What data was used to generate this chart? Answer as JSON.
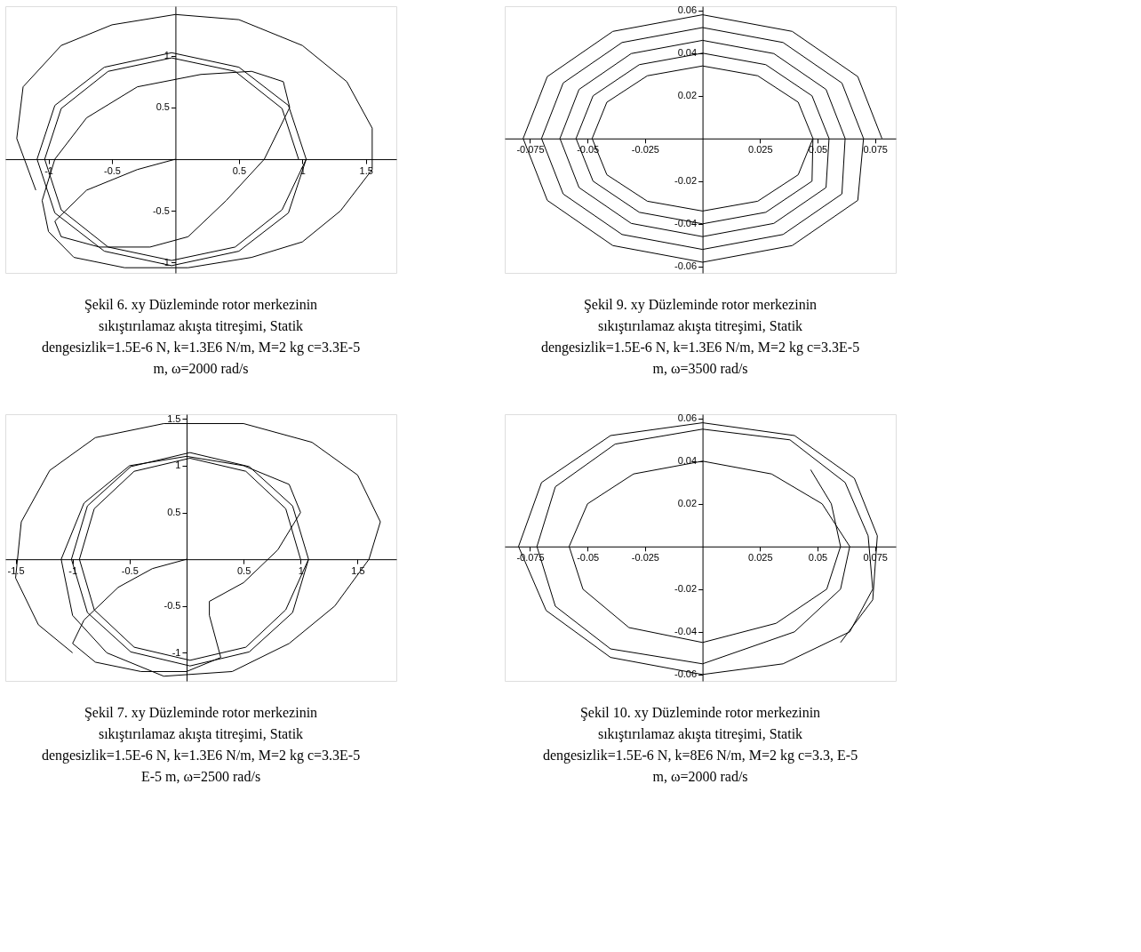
{
  "chart_data": [
    {
      "type": "line",
      "title": "Şekil 6. xy Düzleminde rotor merkezinin sıkıştırılamaz akışta titreşimi, Statik dengesizlik=1.5E-6 N, k=1.3E6 N/m, M=2 kg c=3.3E-5 m, ω=2000 rad/s",
      "xlim": [
        -1.34,
        1.74
      ],
      "ylim": [
        -1.1,
        1.48
      ],
      "xticks": [
        -1,
        -0.5,
        0.5,
        1,
        1.5
      ],
      "yticks": [
        -1,
        -0.5,
        0.5,
        1
      ],
      "series": [
        {
          "color": "#000000",
          "x": [
            0,
            -0.3,
            -0.7,
            -0.95,
            -0.9,
            -0.6,
            -0.2,
            0.1,
            0.4,
            0.7,
            0.9,
            0.85,
            0.6,
            0.2,
            -0.3,
            -0.7,
            -0.95,
            -1.05,
            -1.0,
            -0.8,
            -0.4,
            0.1,
            0.6,
            1.0,
            1.3,
            1.55,
            1.55,
            1.35,
            1.0,
            0.5,
            0.0,
            -0.5,
            -0.9,
            -1.2,
            -1.25,
            -1.1
          ],
          "values": [
            0,
            -0.1,
            -0.3,
            -0.6,
            -0.75,
            -0.85,
            -0.85,
            -0.75,
            -0.4,
            0.0,
            0.5,
            0.75,
            0.85,
            0.82,
            0.7,
            0.4,
            0.0,
            -0.4,
            -0.7,
            -0.95,
            -1.05,
            -1.05,
            -0.95,
            -0.8,
            -0.5,
            -0.1,
            0.3,
            0.75,
            1.1,
            1.35,
            1.4,
            1.3,
            1.1,
            0.7,
            0.2,
            -0.3
          ]
        },
        {
          "color": "#000000",
          "x": [
            0.97,
            0.84,
            0.47,
            -0.03,
            -0.53,
            -0.9,
            -1.03,
            -0.9,
            -0.53,
            -0.03,
            0.47,
            0.84,
            1.03,
            0.89,
            0.5,
            -0.03,
            -0.56,
            -0.95,
            -1.09,
            -0.95,
            -0.56,
            -0.03,
            0.5,
            0.89,
            1.03
          ],
          "values": [
            0,
            0.49,
            0.85,
            0.98,
            0.85,
            0.49,
            0,
            -0.49,
            -0.85,
            -0.98,
            -0.85,
            -0.49,
            0,
            0.52,
            0.89,
            1.03,
            0.89,
            0.52,
            0,
            -0.52,
            -0.89,
            -1.03,
            -0.89,
            -0.52,
            0
          ]
        }
      ]
    },
    {
      "type": "line",
      "title": "Şekil 9. xy Düzleminde rotor merkezinin sıkıştırılamaz akışta titreşimi, Statik dengesizlik=1.5E-6 N, k=1.3E6 N/m, M=2 kg c=3.3E-5 m, ω=3500 rad/s",
      "xlim": [
        -0.086,
        0.084
      ],
      "ylim": [
        -0.063,
        0.062
      ],
      "xticks": [
        -0.075,
        -0.05,
        -0.025,
        0.025,
        0.05,
        0.075
      ],
      "yticks": [
        -0.06,
        -0.04,
        -0.02,
        0.02,
        0.04,
        0.06
      ],
      "series": [
        {
          "color": "#000000",
          "x": [
            0.078,
            0.0675,
            0.039,
            0,
            -0.039,
            -0.0675,
            -0.078,
            -0.0675,
            -0.039,
            0,
            0.039,
            0.0675,
            0.07,
            0.0606,
            0.035,
            0,
            -0.035,
            -0.0606,
            -0.07,
            -0.0606,
            -0.035,
            0,
            0.035,
            0.0606,
            0.062,
            0.0537,
            0.031,
            0,
            -0.031,
            -0.0537,
            -0.062,
            -0.0537,
            -0.031,
            0,
            0.031,
            0.0537,
            0.055,
            0.0476,
            0.0275,
            0,
            -0.0275,
            -0.0476,
            -0.055,
            -0.0476,
            -0.0275,
            0,
            0.0275,
            0.0476,
            0.048,
            0.0416,
            0.024,
            0,
            -0.024,
            -0.0416,
            -0.048,
            -0.0416,
            -0.024,
            0,
            0.024,
            0.0416,
            0.048
          ],
          "values": [
            0,
            0.029,
            0.0502,
            0.058,
            0.0502,
            0.029,
            0,
            -0.029,
            -0.0502,
            -0.058,
            -0.0502,
            -0.029,
            0,
            0.026,
            0.045,
            0.052,
            0.045,
            0.026,
            0,
            -0.026,
            -0.045,
            -0.052,
            -0.045,
            -0.026,
            0,
            0.023,
            0.0398,
            0.046,
            0.0398,
            0.023,
            0,
            -0.023,
            -0.0398,
            -0.046,
            -0.0398,
            -0.023,
            0,
            0.02,
            0.0346,
            0.04,
            0.0346,
            0.02,
            0,
            -0.02,
            -0.0346,
            -0.04,
            -0.0346,
            -0.02,
            0,
            0.017,
            0.0294,
            0.034,
            0.0294,
            0.017,
            0,
            -0.017,
            -0.0294,
            -0.034,
            -0.0294,
            -0.017,
            0
          ]
        }
      ]
    },
    {
      "type": "line",
      "title": "Şekil 7. xy Düzleminde rotor merkezinin sıkıştırılamaz akışta titreşimi, Statik dengesizlik=1.5E-6 N, k=1.3E6 N/m, M=2 kg c=3.3E-5 E-5 m, ω=2500 rad/s",
      "xlim": [
        -1.59,
        1.84
      ],
      "ylim": [
        -1.3,
        1.55
      ],
      "xticks": [
        -1.5,
        -1,
        -0.5,
        0.5,
        1,
        1.5
      ],
      "yticks": [
        -1,
        -0.5,
        0.5,
        1,
        1.5
      ],
      "series": [
        {
          "color": "#000000",
          "x": [
            0,
            -0.3,
            -0.6,
            -0.9,
            -1.0,
            -0.8,
            -0.4,
            0,
            0.3,
            0.2,
            0.2,
            0.5,
            0.8,
            1.0,
            0.9,
            0.5,
            0,
            -0.5,
            -0.9,
            -1.1,
            -1.0,
            -0.7,
            -0.2,
            0.4,
            0.9,
            1.3,
            1.6,
            1.7,
            1.5,
            1.1,
            0.5,
            -0.2,
            -0.8,
            -1.2,
            -1.45,
            -1.5,
            -1.3,
            -1.0
          ],
          "values": [
            0,
            -0.1,
            -0.3,
            -0.65,
            -0.9,
            -1.1,
            -1.2,
            -1.2,
            -1.05,
            -0.6,
            -0.45,
            -0.25,
            0.1,
            0.5,
            0.8,
            1.0,
            1.1,
            1.0,
            0.6,
            0,
            -0.6,
            -1.0,
            -1.25,
            -1.2,
            -0.9,
            -0.5,
            0,
            0.4,
            0.9,
            1.25,
            1.45,
            1.45,
            1.3,
            0.95,
            0.4,
            -0.2,
            -0.7,
            -1.0
          ]
        },
        {
          "color": "#000000",
          "x": [
            1.0,
            0.87,
            0.52,
            0.03,
            -0.46,
            -0.81,
            -0.94,
            -0.81,
            -0.46,
            0.03,
            0.52,
            0.87,
            1.07,
            0.93,
            0.55,
            0.03,
            -0.49,
            -0.87,
            -1.01,
            -0.87,
            -0.49,
            0.03,
            0.55,
            0.93,
            1.07
          ],
          "values": [
            0,
            0.54,
            0.94,
            1.08,
            0.94,
            0.54,
            0,
            -0.54,
            -0.94,
            -1.08,
            -0.94,
            -0.54,
            0,
            0.57,
            0.99,
            1.14,
            0.99,
            0.57,
            0,
            -0.57,
            -0.99,
            -1.14,
            -0.99,
            -0.57,
            0
          ]
        }
      ]
    },
    {
      "type": "line",
      "title": "Şekil 10. xy Düzleminde rotor merkezinin sıkıştırılamaz akışta titreşimi, Statik dengesizlik=1.5E-6 N, k=8E6 N/m, M=2 kg c=3.3, E-5 m, ω=2000 rad/s",
      "xlim": [
        -0.086,
        0.084
      ],
      "ylim": [
        -0.063,
        0.062
      ],
      "xticks": [
        -0.075,
        -0.05,
        -0.025,
        0.025,
        0.05,
        0.075
      ],
      "yticks": [
        -0.06,
        -0.04,
        -0.02,
        0.02,
        0.04,
        0.06
      ],
      "series": [
        {
          "color": "#000000",
          "x": [
            0.047,
            0.056,
            0.06,
            0.054,
            0.032,
            0,
            -0.032,
            -0.052,
            -0.058,
            -0.05,
            -0.03,
            0,
            0.03,
            0.052,
            0.064,
            0.06,
            0.04,
            0,
            -0.04,
            -0.064,
            -0.072,
            -0.064,
            -0.038,
            0,
            0.038,
            0.062,
            0.072,
            0.074,
            0.064,
            0.035,
            0,
            -0.04,
            -0.068,
            -0.08,
            -0.07,
            -0.04,
            0,
            0.04,
            0.066,
            0.076,
            0.074,
            0.06
          ],
          "values": [
            0.036,
            0.02,
            0,
            -0.02,
            -0.036,
            -0.045,
            -0.038,
            -0.02,
            0,
            0.02,
            0.034,
            0.04,
            0.034,
            0.02,
            0,
            -0.02,
            -0.04,
            -0.055,
            -0.048,
            -0.028,
            0,
            0.028,
            0.048,
            0.055,
            0.05,
            0.03,
            0.005,
            -0.02,
            -0.04,
            -0.055,
            -0.06,
            -0.052,
            -0.03,
            0,
            0.03,
            0.052,
            0.058,
            0.052,
            0.032,
            0.005,
            -0.025,
            -0.045
          ]
        }
      ]
    }
  ]
}
